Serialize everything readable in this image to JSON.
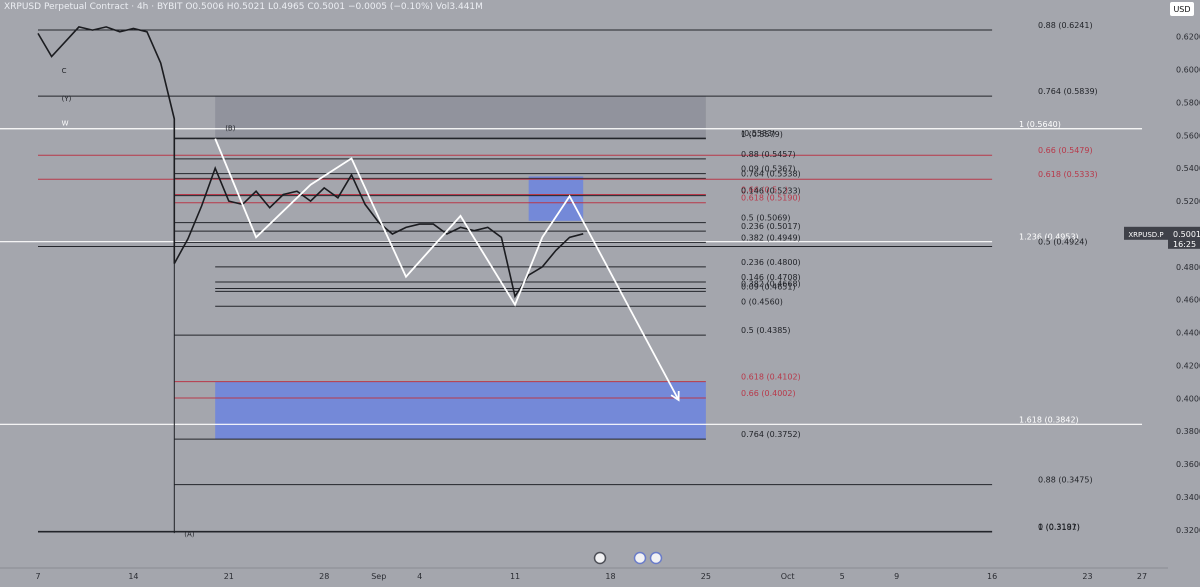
{
  "header": {
    "symbol_line": "XRPUSD Perpetual Contract · 4h · BYBIT",
    "open": "O0.5006",
    "high": "H0.5021",
    "low": "L0.4965",
    "close": "C0.5001",
    "change": "−0.0005 (−0.10%)",
    "volume": "Vol3.441M"
  },
  "price_axis": {
    "currency_badge": "USD",
    "ticks": [
      "0.6200",
      "0.6000",
      "0.5800",
      "0.5600",
      "0.5400",
      "0.5200",
      "0.4800",
      "0.4600",
      "0.4400",
      "0.4200",
      "0.4000",
      "0.3800",
      "0.3600",
      "0.3400",
      "0.3200"
    ],
    "last_price": {
      "symbol": "XRPUSD.P",
      "price": "0.5001",
      "countdown": "16:25"
    }
  },
  "time_axis": {
    "ticks": [
      "7",
      "14",
      "21",
      "28",
      "Sep",
      "4",
      "11",
      "18",
      "25",
      "Oct",
      "5",
      "9",
      "16",
      "23",
      "27"
    ]
  },
  "chart_data": {
    "type": "line",
    "instrument": "XRPUSD.P",
    "timeframe": "4h",
    "ylim": [
      0.312,
      0.632
    ],
    "y_ticks": [
      0.62,
      0.6,
      0.58,
      0.56,
      0.54,
      0.52,
      0.48,
      0.46,
      0.44,
      0.42,
      0.4,
      0.38,
      0.36,
      0.34,
      0.32
    ],
    "x_labels": [
      "7",
      "14",
      "21",
      "28",
      "Sep",
      "4",
      "11",
      "18",
      "25",
      "Oct",
      "5",
      "9",
      "16",
      "23",
      "27"
    ],
    "price_path": {
      "points": [
        [
          "Aug 7",
          0.622
        ],
        [
          "Aug 8",
          0.608
        ],
        [
          "Aug 9",
          0.617
        ],
        [
          "Aug 10",
          0.626
        ],
        [
          "Aug 11",
          0.624
        ],
        [
          "Aug 12",
          0.626
        ],
        [
          "Aug 13",
          0.623
        ],
        [
          "Aug 14",
          0.625
        ],
        [
          "Aug 15",
          0.623
        ],
        [
          "Aug 16",
          0.604
        ],
        [
          "Aug 17",
          0.57
        ],
        [
          "Aug 17",
          0.482
        ],
        [
          "Aug 18",
          0.497
        ],
        [
          "Aug 19",
          0.517
        ],
        [
          "Aug 20",
          0.54
        ],
        [
          "Aug 21",
          0.52
        ],
        [
          "Aug 22",
          0.518
        ],
        [
          "Aug 23",
          0.526
        ],
        [
          "Aug 24",
          0.516
        ],
        [
          "Aug 25",
          0.524
        ],
        [
          "Aug 26",
          0.526
        ],
        [
          "Aug 27",
          0.52
        ],
        [
          "Aug 28",
          0.528
        ],
        [
          "Aug 29",
          0.522
        ],
        [
          "Aug 30",
          0.536
        ],
        [
          "Aug 31",
          0.518
        ],
        [
          "Sep 1",
          0.507
        ],
        [
          "Sep 2",
          0.5
        ],
        [
          "Sep 3",
          0.504
        ],
        [
          "Sep 4",
          0.506
        ],
        [
          "Sep 5",
          0.506
        ],
        [
          "Sep 6",
          0.5
        ],
        [
          "Sep 7",
          0.504
        ],
        [
          "Sep 8",
          0.502
        ],
        [
          "Sep 9",
          0.504
        ],
        [
          "Sep 10",
          0.498
        ],
        [
          "Sep 11",
          0.462
        ],
        [
          "Sep 12",
          0.475
        ],
        [
          "Sep 13",
          0.48
        ],
        [
          "Sep 14",
          0.49
        ],
        [
          "Sep 15",
          0.498
        ],
        [
          "Sep 16",
          0.5001
        ]
      ]
    },
    "wave_path": {
      "points": [
        [
          "Aug 20",
          0.558
        ],
        [
          "Aug 23",
          0.498
        ],
        [
          "Aug 27",
          0.53
        ],
        [
          "Aug 30",
          0.546
        ],
        [
          "Sep 3",
          0.474
        ],
        [
          "Sep 7",
          0.511
        ],
        [
          "Sep 11",
          0.457
        ],
        [
          "Sep 13",
          0.498
        ],
        [
          "Sep 15",
          0.523
        ],
        [
          "Sep 23",
          0.399
        ]
      ]
    },
    "zones": [
      {
        "from": "Aug 20",
        "to": "Sep 25",
        "high": 0.584,
        "low": 0.558,
        "color": "#8c8f99"
      },
      {
        "from": "Sep 12",
        "to": "Sep 16",
        "high": 0.535,
        "low": 0.508,
        "color": "#6f86dd"
      },
      {
        "from": "Aug 20",
        "to": "Sep 25",
        "high": 0.41,
        "low": 0.375,
        "color": "#6f86dd"
      }
    ],
    "wave_labels": [
      {
        "text": "C",
        "date": "Aug 8",
        "price": 0.598
      },
      {
        "text": "(Y)",
        "date": "Aug 8",
        "price": 0.581
      },
      {
        "text": "W",
        "date": "Aug 8",
        "price": 0.566
      },
      {
        "text": "(B)",
        "date": "Aug 20",
        "price": 0.563
      },
      {
        "text": "(A)",
        "date": "Aug 17",
        "price": 0.316
      }
    ],
    "levels": [
      {
        "label": "0.88 (0.6241)",
        "price": 0.6241,
        "from": "Aug 7",
        "to": "Oct 16",
        "color": "black"
      },
      {
        "label": "0.764 (0.5839)",
        "price": 0.5839,
        "from": "Aug 7",
        "to": "Oct 16",
        "color": "black"
      },
      {
        "label": "1 (0.5640)",
        "price": 0.564,
        "from": "Aug 1",
        "to": "Oct 27",
        "color": "white"
      },
      {
        "label": "1 (0.5579)",
        "price": 0.5579,
        "from": "Aug 17",
        "to": "Sep 25",
        "color": "black"
      },
      {
        "label": "(0.5583)",
        "price": 0.5583,
        "from": "Aug 17",
        "to": "Sep 25",
        "color": "black"
      },
      {
        "label": "0.66 (0.5479)",
        "price": 0.5479,
        "from": "Aug 7",
        "to": "Oct 16",
        "color": "red"
      },
      {
        "label": "0.88 (0.5457)",
        "price": 0.5457,
        "from": "Aug 17",
        "to": "Sep 25",
        "color": "black"
      },
      {
        "label": "0.09 (0.5367)",
        "price": 0.5367,
        "from": "Aug 17",
        "to": "Sep 25",
        "color": "black"
      },
      {
        "label": "0.764 (0.5338)",
        "price": 0.5338,
        "from": "Aug 17",
        "to": "Sep 25",
        "color": "black"
      },
      {
        "label": "0.618 (0.5333)",
        "price": 0.5333,
        "from": "Aug 7",
        "to": "Oct 16",
        "color": "red"
      },
      {
        "label": "0.66 (0.5...)",
        "price": 0.524,
        "from": "Aug 17",
        "to": "Sep 25",
        "color": "red"
      },
      {
        "label": "0.146 (0.5233)",
        "price": 0.5233,
        "from": "Aug 17",
        "to": "Sep 25",
        "color": "black"
      },
      {
        "label": "0.618 (0.5190)",
        "price": 0.519,
        "from": "Aug 17",
        "to": "Sep 25",
        "color": "red"
      },
      {
        "label": "0.5 (0.5069)",
        "price": 0.5069,
        "from": "Aug 17",
        "to": "Sep 25",
        "color": "black"
      },
      {
        "label": "0.236 (0.5017)",
        "price": 0.5017,
        "from": "Aug 17",
        "to": "Sep 25",
        "color": "black"
      },
      {
        "label": "1.236 (0.4953)",
        "price": 0.4953,
        "from": "Aug 1",
        "to": "Oct 16",
        "color": "white"
      },
      {
        "label": "0.382 (0.4949)",
        "price": 0.4949,
        "from": "Aug 17",
        "to": "Sep 25",
        "color": "black"
      },
      {
        "label": "0.5 (0.4924)",
        "price": 0.4924,
        "from": "Aug 7",
        "to": "Oct 16",
        "color": "black"
      },
      {
        "label": "0.236 (0.4800)",
        "price": 0.48,
        "from": "Aug 20",
        "to": "Sep 25",
        "color": "black"
      },
      {
        "label": "0.146 (0.4708)",
        "price": 0.4708,
        "from": "Aug 20",
        "to": "Sep 25",
        "color": "black"
      },
      {
        "label": "0.382 (0.4668)",
        "price": 0.4668,
        "from": "Aug 20",
        "to": "Sep 25",
        "color": "black"
      },
      {
        "label": "0.09 (0.4651)",
        "price": 0.4651,
        "from": "Aug 20",
        "to": "Sep 25",
        "color": "black"
      },
      {
        "label": "0 (0.4560)",
        "price": 0.456,
        "from": "Aug 20",
        "to": "Sep 25",
        "color": "black"
      },
      {
        "label": "0.5 (0.4385)",
        "price": 0.4385,
        "from": "Aug 17",
        "to": "Sep 25",
        "color": "black"
      },
      {
        "label": "0.618 (0.4102)",
        "price": 0.4102,
        "from": "Aug 17",
        "to": "Sep 25",
        "color": "red"
      },
      {
        "label": "0.66 (0.4002)",
        "price": 0.4002,
        "from": "Aug 17",
        "to": "Sep 25",
        "color": "red"
      },
      {
        "label": "1.618 (0.3842)",
        "price": 0.3842,
        "from": "Aug 1",
        "to": "Oct 27",
        "color": "white"
      },
      {
        "label": "0.764 (0.3752)",
        "price": 0.3752,
        "from": "Aug 17",
        "to": "Sep 25",
        "color": "black"
      },
      {
        "label": "0.88 (0.3475)",
        "price": 0.3475,
        "from": "Aug 17",
        "to": "Oct 16",
        "color": "black"
      },
      {
        "label": "1 (0.3187)",
        "price": 0.3187,
        "from": "Aug 7",
        "to": "Oct 16",
        "color": "black"
      },
      {
        "label": "0 (0.3191)",
        "price": 0.3191,
        "from": "Aug 7",
        "to": "Oct 16",
        "color": "black"
      }
    ]
  }
}
